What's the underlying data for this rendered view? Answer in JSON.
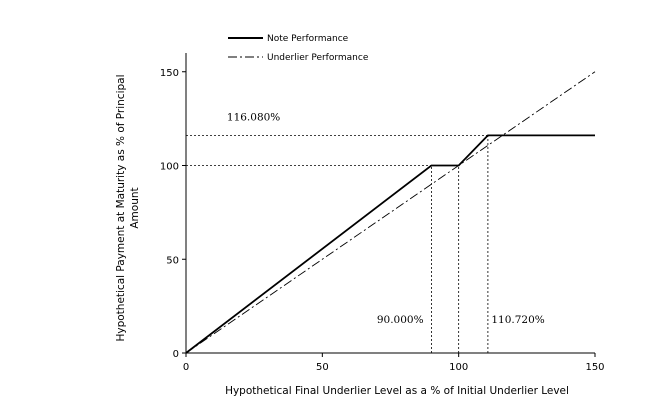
{
  "chart_data": {
    "type": "line",
    "xlabel": "Hypothetical Final Underlier Level as a % of Initial Underlier Level",
    "ylabel_lines": [
      "Hypothetical Payment at Maturity as % of Principal",
      "Amount"
    ],
    "xlim": [
      0,
      150
    ],
    "ylim": [
      0,
      160
    ],
    "x_ticks": [
      0,
      50,
      100,
      150
    ],
    "y_ticks": [
      0,
      50,
      100,
      150
    ],
    "grid": false,
    "legend_position": "top-left",
    "series": [
      {
        "name": "Note Performance",
        "style": "solid",
        "x": [
          0,
          90,
          100,
          110.72,
          150
        ],
        "y": [
          0,
          100,
          100,
          116.08,
          116.08
        ]
      },
      {
        "name": "Underlier Performance",
        "style": "dash-dot",
        "x": [
          0,
          150
        ],
        "y": [
          0,
          150
        ]
      }
    ],
    "reference_lines": [
      {
        "orientation": "horizontal",
        "y": 100,
        "x_from": 0,
        "x_to": 90
      },
      {
        "orientation": "horizontal",
        "y": 116.08,
        "x_from": 0,
        "x_to": 110.72
      },
      {
        "orientation": "vertical",
        "x": 90,
        "y_from": 0,
        "y_to": 100
      },
      {
        "orientation": "vertical",
        "x": 100,
        "y_from": 0,
        "y_to": 100
      },
      {
        "orientation": "vertical",
        "x": 110.72,
        "y_from": 0,
        "y_to": 116.08
      }
    ],
    "annotations": [
      {
        "text": "116.080%",
        "x": 15,
        "y": 124
      },
      {
        "text": "90.000%",
        "x": 70,
        "y": 16
      },
      {
        "text": "110.720%",
        "x": 112,
        "y": 16
      }
    ]
  }
}
